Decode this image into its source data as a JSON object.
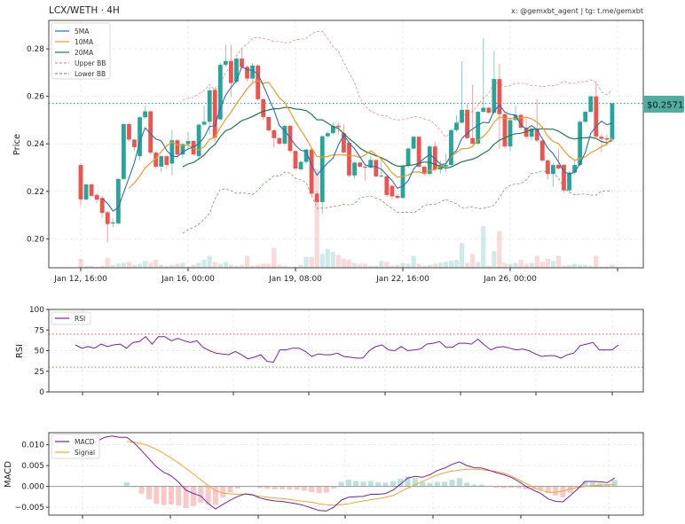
{
  "header": {
    "title": "LCX/WETH · 4H",
    "credits": "x: @gemxbt_agent | tg: t.me/gemxbt"
  },
  "price_tag": "$0.2571",
  "colors": {
    "up": "#26a69a",
    "down": "#ef5350",
    "sma5": "#2a6db5",
    "sma10": "#f39a1e",
    "sma20": "#1e7a4c",
    "upper_bb": "#f08a8a",
    "lower_bb": "#6aa86a",
    "rsi": "#7b1fa2",
    "macd": "#7b1fa2",
    "signal": "#f5a623",
    "overbought": "#e74c3c",
    "oversold": "#4caf50",
    "price_tag_bg": "#4fae9f"
  },
  "chart_data": [
    {
      "type": "candlestick",
      "ylabel": "Price",
      "ylim": [
        0.1878,
        0.292
      ],
      "grid": true,
      "legend_placement": "top-left",
      "legend": [
        "5MA",
        "10MA",
        "20MA",
        "Upper BB",
        "Lower BB"
      ],
      "yticks": [
        {
          "value": 0.2,
          "label": "0.20"
        },
        {
          "value": 0.22,
          "label": "0.22"
        },
        {
          "value": 0.24,
          "label": "0.24"
        },
        {
          "value": 0.26,
          "label": "0.26"
        },
        {
          "value": 0.28,
          "label": "0.28"
        }
      ],
      "xticks": [
        "Jan 12, 16:00",
        "Jan 16, 00:00",
        "Jan 19, 08:00",
        "Jan 22, 16:00",
        "Jan 26, 00:00"
      ],
      "current_price": 0.2571,
      "indicators": {
        "sma_periods": [
          5,
          10,
          20
        ],
        "bollinger": {
          "period": 20,
          "stddev": 2
        }
      },
      "ohlc": [
        [
          0.2311,
          0.2318,
          0.2138,
          0.2166
        ],
        [
          0.2166,
          0.2235,
          0.216,
          0.2229
        ],
        [
          0.2229,
          0.2232,
          0.2175,
          0.2181
        ],
        [
          0.2185,
          0.219,
          0.215,
          0.2165
        ],
        [
          0.2172,
          0.218,
          0.209,
          0.2109
        ],
        [
          0.2112,
          0.2115,
          0.1986,
          0.2062
        ],
        [
          0.2064,
          0.2085,
          0.205,
          0.2069
        ],
        [
          0.2065,
          0.2255,
          0.206,
          0.2252
        ],
        [
          0.2252,
          0.2486,
          0.2248,
          0.2483
        ],
        [
          0.2483,
          0.2488,
          0.241,
          0.2418
        ],
        [
          0.2418,
          0.242,
          0.237,
          0.2386
        ],
        [
          0.2348,
          0.2516,
          0.233,
          0.2512
        ],
        [
          0.2512,
          0.256,
          0.2505,
          0.2537
        ],
        [
          0.2537,
          0.254,
          0.2355,
          0.2363
        ],
        [
          0.2363,
          0.2368,
          0.2295,
          0.2304
        ],
        [
          0.2304,
          0.2352,
          0.228,
          0.2348
        ],
        [
          0.2348,
          0.2352,
          0.2295,
          0.2311
        ],
        [
          0.2317,
          0.246,
          0.2268,
          0.2415
        ],
        [
          0.2415,
          0.242,
          0.234,
          0.2355
        ],
        [
          0.2355,
          0.2402,
          0.234,
          0.2399
        ],
        [
          0.2399,
          0.245,
          0.238,
          0.2412
        ],
        [
          0.2412,
          0.2415,
          0.235,
          0.2355
        ],
        [
          0.2348,
          0.2485,
          0.2335,
          0.2481
        ],
        [
          0.2481,
          0.256,
          0.2475,
          0.2493
        ],
        [
          0.2493,
          0.264,
          0.244,
          0.2625
        ],
        [
          0.2627,
          0.264,
          0.2408,
          0.2426
        ],
        [
          0.2503,
          0.274,
          0.25,
          0.2733
        ],
        [
          0.2733,
          0.2817,
          0.2725,
          0.2749
        ],
        [
          0.2749,
          0.2817,
          0.26,
          0.2656
        ],
        [
          0.2662,
          0.2765,
          0.2655,
          0.2759
        ],
        [
          0.2759,
          0.28,
          0.2718,
          0.2724
        ],
        [
          0.2724,
          0.273,
          0.2665,
          0.2675
        ],
        [
          0.2675,
          0.274,
          0.266,
          0.273
        ],
        [
          0.273,
          0.2735,
          0.258,
          0.2588
        ],
        [
          0.2588,
          0.2592,
          0.25,
          0.2513
        ],
        [
          0.2513,
          0.2515,
          0.245,
          0.2457
        ],
        [
          0.2457,
          0.246,
          0.2383,
          0.2424
        ],
        [
          0.2424,
          0.2428,
          0.2395,
          0.2401
        ],
        [
          0.2401,
          0.248,
          0.2395,
          0.2476
        ],
        [
          0.2476,
          0.2478,
          0.2362,
          0.237
        ],
        [
          0.237,
          0.2372,
          0.229,
          0.2296
        ],
        [
          0.2293,
          0.233,
          0.2285,
          0.2324
        ],
        [
          0.2324,
          0.238,
          0.2315,
          0.2376
        ],
        [
          0.2376,
          0.238,
          0.2182,
          0.219
        ],
        [
          0.219,
          0.2195,
          0.215,
          0.2155
        ],
        [
          0.2155,
          0.2436,
          0.2105,
          0.2432
        ],
        [
          0.2432,
          0.245,
          0.2425,
          0.2445
        ],
        [
          0.2445,
          0.249,
          0.244,
          0.2476
        ],
        [
          0.2476,
          0.249,
          0.244,
          0.247
        ],
        [
          0.2445,
          0.2482,
          0.236,
          0.2364
        ],
        [
          0.2405,
          0.2412,
          0.226,
          0.2267
        ],
        [
          0.2267,
          0.2325,
          0.2255,
          0.2321
        ],
        [
          0.2321,
          0.2324,
          0.23,
          0.2304
        ],
        [
          0.2304,
          0.231,
          0.2245,
          0.23
        ],
        [
          0.23,
          0.235,
          0.2295,
          0.2332
        ],
        [
          0.2332,
          0.2335,
          0.2258,
          0.2263
        ],
        [
          0.2263,
          0.234,
          0.2258,
          0.2266
        ],
        [
          0.2263,
          0.227,
          0.2175,
          0.2185
        ],
        [
          0.2223,
          0.223,
          0.2165,
          0.2179
        ],
        [
          0.2181,
          0.219,
          0.217,
          0.2172
        ],
        [
          0.2172,
          0.231,
          0.217,
          0.2307
        ],
        [
          0.2307,
          0.2385,
          0.23,
          0.238
        ],
        [
          0.238,
          0.2435,
          0.2375,
          0.243
        ],
        [
          0.243,
          0.2432,
          0.23,
          0.2304
        ],
        [
          0.2304,
          0.2306,
          0.2268,
          0.2273
        ],
        [
          0.2273,
          0.2392,
          0.2268,
          0.2389
        ],
        [
          0.2389,
          0.241,
          0.2285,
          0.2292
        ],
        [
          0.2292,
          0.233,
          0.2275,
          0.2311
        ],
        [
          0.2304,
          0.236,
          0.228,
          0.2311
        ],
        [
          0.2311,
          0.2462,
          0.2305,
          0.2458
        ],
        [
          0.2458,
          0.252,
          0.245,
          0.2489
        ],
        [
          0.2489,
          0.2748,
          0.2485,
          0.2543
        ],
        [
          0.2543,
          0.257,
          0.2418,
          0.2424
        ],
        [
          0.2424,
          0.265,
          0.2395,
          0.2401
        ],
        [
          0.2401,
          0.254,
          0.2395,
          0.2535
        ],
        [
          0.2535,
          0.2845,
          0.253,
          0.2552
        ],
        [
          0.2552,
          0.2555,
          0.2525,
          0.2531
        ],
        [
          0.2531,
          0.2791,
          0.2525,
          0.2673
        ],
        [
          0.2673,
          0.2738,
          0.238,
          0.2525
        ],
        [
          0.2525,
          0.253,
          0.238,
          0.2389
        ],
        [
          0.2389,
          0.2505,
          0.2367,
          0.25
        ],
        [
          0.25,
          0.256,
          0.2495,
          0.2522
        ],
        [
          0.2522,
          0.2525,
          0.246,
          0.2468
        ],
        [
          0.2468,
          0.251,
          0.242,
          0.243
        ],
        [
          0.243,
          0.247,
          0.2415,
          0.2464
        ],
        [
          0.2464,
          0.259,
          0.2405,
          0.2414
        ],
        [
          0.2414,
          0.2418,
          0.2325,
          0.233
        ],
        [
          0.233,
          0.2335,
          0.225,
          0.2273
        ],
        [
          0.2273,
          0.232,
          0.222,
          0.2311
        ],
        [
          0.2311,
          0.238,
          0.229,
          0.2296
        ],
        [
          0.2311,
          0.2315,
          0.2195,
          0.2204
        ],
        [
          0.2204,
          0.2285,
          0.2198,
          0.2279
        ],
        [
          0.2279,
          0.233,
          0.227,
          0.2311
        ],
        [
          0.2311,
          0.25,
          0.2305,
          0.2493
        ],
        [
          0.2493,
          0.254,
          0.2488,
          0.2535
        ],
        [
          0.2535,
          0.2602,
          0.253,
          0.26
        ],
        [
          0.26,
          0.266,
          0.2425,
          0.243
        ],
        [
          0.243,
          0.2442,
          0.2365,
          0.2421
        ],
        [
          0.2424,
          0.244,
          0.239,
          0.2418
        ],
        [
          0.2418,
          0.2575,
          0.2415,
          0.2571
        ]
      ],
      "volume_relative": [
        9,
        2,
        2,
        1,
        2,
        10,
        3,
        4,
        5,
        6,
        3,
        4,
        7,
        5,
        8,
        3,
        2,
        3,
        4,
        5,
        1,
        3,
        5,
        8,
        12,
        6,
        4,
        6,
        3,
        2,
        3,
        12,
        2,
        3,
        4,
        4,
        20,
        3,
        2,
        1,
        1,
        3,
        11,
        11,
        100,
        14,
        19,
        16,
        13,
        9,
        8,
        5,
        4,
        4,
        2,
        2,
        7,
        6,
        2,
        3,
        5,
        4,
        12,
        4,
        2,
        3,
        4,
        5,
        6,
        7,
        8,
        25,
        5,
        14,
        6,
        42,
        2,
        17,
        37,
        5,
        4,
        5,
        8,
        4,
        5,
        12,
        6,
        9,
        7,
        12,
        2,
        3,
        4,
        3,
        3,
        2,
        12,
        1,
        1,
        3
      ]
    },
    {
      "type": "line",
      "ylabel": "RSI",
      "ylim": [
        0,
        100
      ],
      "grid": true,
      "legend_placement": "top-left",
      "yticks": [
        {
          "value": 0,
          "label": "0"
        },
        {
          "value": 25,
          "label": "25"
        },
        {
          "value": 50,
          "label": "50"
        },
        {
          "value": 75,
          "label": "75"
        },
        {
          "value": 100,
          "label": "100"
        }
      ],
      "reference_lines": [
        70,
        30
      ],
      "series": [
        {
          "name": "RSI",
          "values": [
            57,
            53,
            55,
            53,
            58,
            55,
            57,
            58,
            53,
            60,
            61,
            67,
            58,
            67,
            67,
            62,
            65,
            62,
            60,
            62,
            54,
            50,
            47,
            46,
            45,
            49,
            45,
            40,
            42,
            45,
            37,
            36,
            51,
            51,
            53,
            53,
            49,
            43,
            46,
            45,
            45,
            47,
            43,
            42,
            41,
            41,
            50,
            55,
            57,
            51,
            50,
            55,
            50,
            51,
            52,
            58,
            59,
            61,
            54,
            54,
            59,
            59,
            58,
            64,
            57,
            51,
            54,
            55,
            53,
            51,
            52,
            50,
            46,
            43,
            44,
            44,
            41,
            45,
            47,
            56,
            58,
            60,
            51,
            51,
            51,
            57
          ]
        }
      ]
    },
    {
      "type": "line",
      "ylabel": "MACD",
      "ylim": [
        -0.0069,
        0.0129
      ],
      "grid": true,
      "legend_placement": "top-left",
      "yticks": [
        {
          "value": 0.01,
          "label": "0.010"
        },
        {
          "value": 0.005,
          "label": "0.005"
        },
        {
          "value": 0.0,
          "label": "0.000"
        },
        {
          "value": -0.005,
          "label": "−0.005"
        }
      ],
      "series": [
        {
          "name": "MACD",
          "values": [
            0.0095,
            0.0102,
            0.0109,
            0.0118,
            0.0121,
            0.0118,
            0.0118,
            0.0104,
            0.0086,
            0.0066,
            0.0047,
            0.0034,
            0.0025,
            0.001,
            -0.0009,
            -0.0017,
            -0.0023,
            -0.0041,
            -0.0054,
            -0.0043,
            -0.0033,
            -0.0024,
            -0.0018,
            -0.002,
            -0.0028,
            -0.0032,
            -0.0035,
            -0.0036,
            -0.0039,
            -0.0042,
            -0.0046,
            -0.0052,
            -0.0058,
            -0.0059,
            -0.005,
            -0.0033,
            -0.0026,
            -0.0025,
            -0.0024,
            -0.0019,
            -0.0019,
            -0.0017,
            -0.0009,
            0.0005,
            0.002,
            0.0024,
            0.0022,
            0.0028,
            0.0038,
            0.0044,
            0.0053,
            0.0059,
            0.005,
            0.0045,
            0.0044,
            0.0039,
            0.0033,
            0.0028,
            0.0022,
            0.0012,
            0.0,
            -0.0009,
            -0.0017,
            -0.003,
            -0.0036,
            -0.0037,
            -0.0022,
            -0.0006,
            0.0012,
            0.0012,
            0.0011,
            0.0009,
            0.002
          ]
        },
        {
          "name": "Signal",
          "values": [
            null,
            null,
            null,
            null,
            null,
            null,
            0.0108,
            0.0106,
            0.0103,
            0.0097,
            0.0089,
            0.0079,
            0.0068,
            0.0056,
            0.0043,
            0.003,
            0.0016,
            0.0002,
            -0.001,
            -0.0016,
            -0.0018,
            -0.0019,
            -0.0019,
            -0.0021,
            -0.0024,
            -0.0026,
            -0.0028,
            -0.0029,
            -0.0031,
            -0.0034,
            -0.0036,
            -0.0038,
            -0.0042,
            -0.0044,
            -0.0045,
            -0.0044,
            -0.0042,
            -0.0038,
            -0.0035,
            -0.0032,
            -0.0029,
            -0.0026,
            -0.0022,
            -0.0013,
            -0.0004,
            0.0004,
            0.0012,
            0.002,
            0.0027,
            0.0033,
            0.0037,
            0.0039,
            0.0041,
            0.0041,
            0.004,
            0.0038,
            0.0036,
            0.0032,
            0.0025,
            0.0016,
            0.0007,
            -0.0002,
            -0.0009,
            -0.0014,
            -0.0014,
            -0.0011,
            -0.0006,
            -0.0003,
            0.0,
            0.0002,
            0.0003,
            0.0004,
            0.0005
          ]
        }
      ],
      "histogram": "MACD minus Signal"
    }
  ]
}
